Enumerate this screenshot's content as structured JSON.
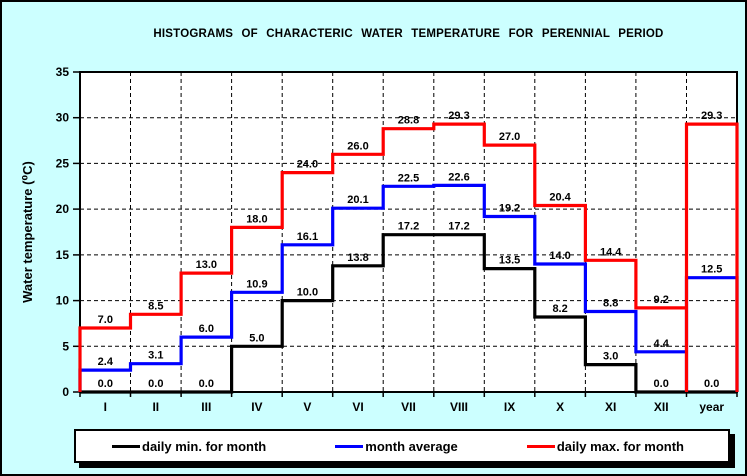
{
  "colors": {
    "page_background": "#ccffff",
    "plot_background": "#ffffff",
    "grid": "#000000",
    "min_series": "#000000",
    "avg_series": "#0000ff",
    "max_series": "#ff0000"
  },
  "chart_data": {
    "type": "step-histogram",
    "title": "HISTOGRAMS OF CHARACTERIC WATER TEMPERATURE FOR PERENNIAL PERIOD",
    "ylabel": "Water temperature (⁰C)",
    "xlabel": "",
    "categories": [
      "I",
      "II",
      "III",
      "IV",
      "V",
      "VI",
      "VII",
      "VIII",
      "IX",
      "X",
      "XI",
      "XII",
      "year"
    ],
    "series": [
      {
        "name": "daily min. for month",
        "color": "#000000",
        "values": [
          0.0,
          0.0,
          0.0,
          5.0,
          10.0,
          13.8,
          17.2,
          17.2,
          13.5,
          8.2,
          3.0,
          0.0,
          0.0
        ]
      },
      {
        "name": "month average",
        "color": "#0000ff",
        "values": [
          2.4,
          3.1,
          6.0,
          10.9,
          16.1,
          20.1,
          22.5,
          22.6,
          19.2,
          14.0,
          8.8,
          4.4,
          12.5
        ]
      },
      {
        "name": "daily max. for month",
        "color": "#ff0000",
        "values": [
          7.0,
          8.5,
          13.0,
          18.0,
          24.0,
          26.0,
          28.8,
          29.3,
          27.0,
          20.4,
          14.4,
          9.2,
          29.3
        ]
      }
    ],
    "ylim": [
      0,
      35
    ],
    "yticks": [
      0,
      5,
      10,
      15,
      20,
      25,
      30,
      35
    ],
    "grid": true,
    "value_labels": true,
    "legend_position": "bottom"
  }
}
